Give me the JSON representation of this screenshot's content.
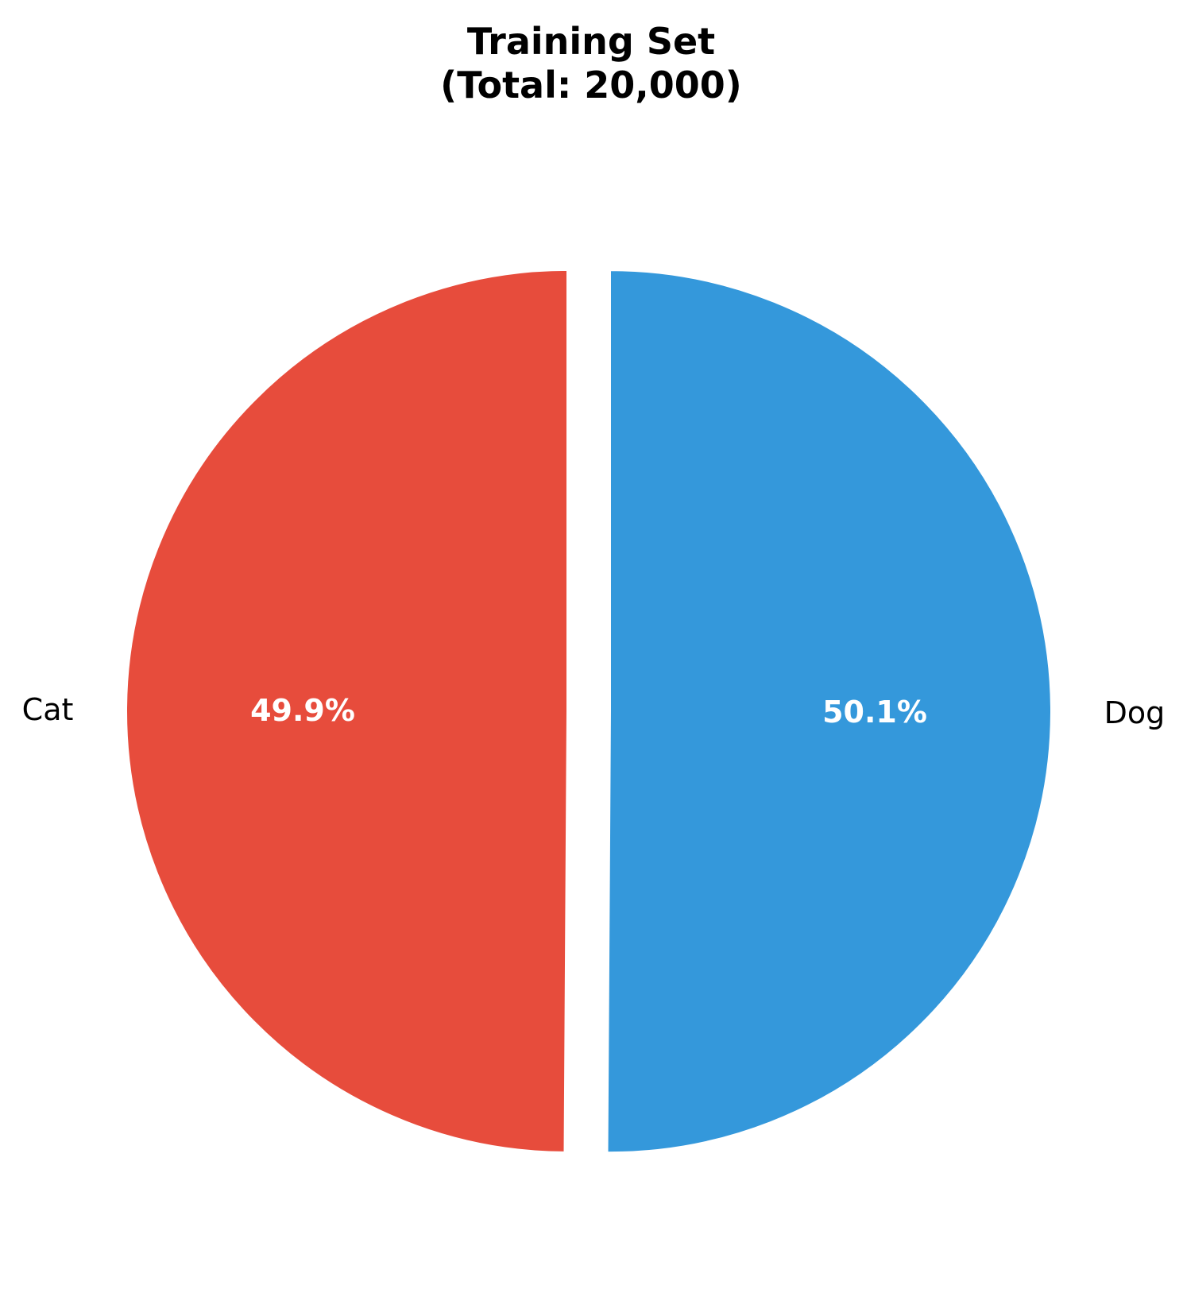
{
  "chart_data": {
    "type": "pie",
    "title_lines": [
      "Training Set",
      "(Total: 20,000)"
    ],
    "slices": [
      {
        "label": "Cat",
        "value": 49.9,
        "pct_label": "49.9%",
        "color": "#e74c3c"
      },
      {
        "label": "Dog",
        "value": 50.1,
        "pct_label": "50.1%",
        "color": "#3498db"
      }
    ],
    "start_angle_deg": 90,
    "direction": "counterclockwise",
    "exploded": true
  }
}
